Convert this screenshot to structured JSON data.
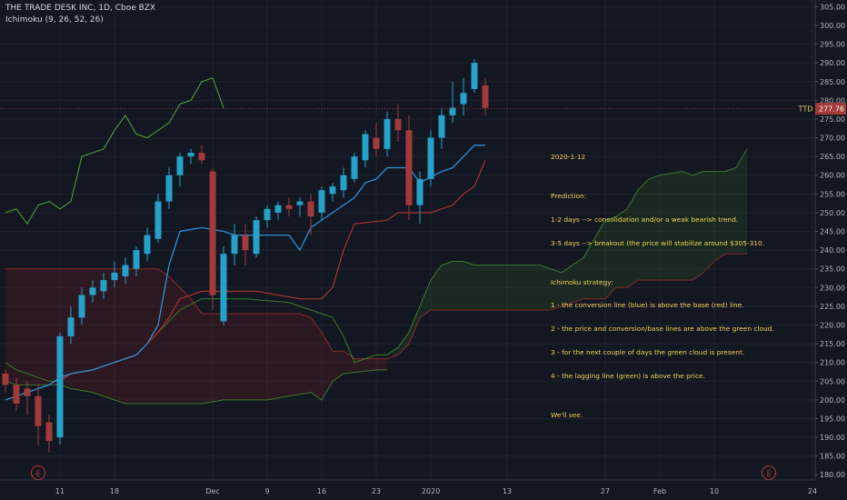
{
  "header": {
    "symbol_line": "THE TRADE DESK INC, 1D, Cboe BZX",
    "indicator_line": "Ichimoku (9, 26, 52, 26)"
  },
  "price_tag": {
    "symbol": "TTD",
    "value": "277.76"
  },
  "annotation": {
    "lines": [
      "2020-1-12",
      "",
      "Prediction:",
      "1-2 days --> consolidation and/or a weak bearish trend.",
      "3-5 days --> breakout (the price will stabilize around $305-310.",
      "",
      "Ichimoku strategy:",
      "1 - the conversion line (blue) is above the base (red) line.",
      "2 - the price and conversion/base lines are above the green cloud.",
      "3 - for the next couple of days the green cloud is present.",
      "4 - the lagging line (green) is above the price.",
      "",
      "We'll see."
    ]
  },
  "colors": {
    "background": "#131722",
    "up": "#26a1c9",
    "down": "#a33a3a",
    "conversion": "#2f8fd6",
    "base": "#a8332f",
    "lagging": "#4f9a2e",
    "span_a": "#3a7a2a",
    "span_b": "#8a2a2a",
    "cloud_bull": "rgba(60,120,40,0.18)",
    "cloud_bear": "rgba(130,30,30,0.22)",
    "axis_text": "#b2b5be",
    "annotation": "#f7d154",
    "earnings_marker": "#c0392b"
  },
  "chart_data": {
    "type": "candlestick",
    "title": "THE TRADE DESK INC, 1D, Cboe BZX",
    "indicator": "Ichimoku (9, 26, 52, 26)",
    "ylim": [
      178.6,
      306.8
    ],
    "y_ticks": [
      180,
      185,
      190,
      195,
      200,
      205,
      210,
      215,
      220,
      225,
      230,
      235,
      240,
      245,
      250,
      255,
      260,
      265,
      270,
      275,
      280,
      285,
      290,
      295,
      300,
      305
    ],
    "x_range": [
      0,
      75
    ],
    "x_ticks": [
      {
        "i": 5,
        "label": "11"
      },
      {
        "i": 10,
        "label": "18"
      },
      {
        "i": 19,
        "label": "Dec"
      },
      {
        "i": 24,
        "label": "9"
      },
      {
        "i": 29,
        "label": "16"
      },
      {
        "i": 34,
        "label": "23"
      },
      {
        "i": 39,
        "label": "2020"
      },
      {
        "i": 46,
        "label": "13"
      },
      {
        "i": 55,
        "label": "27"
      },
      {
        "i": 60,
        "label": "Feb"
      },
      {
        "i": 65,
        "label": "10"
      },
      {
        "i": 74,
        "label": "24"
      }
    ],
    "candles": [
      [
        207,
        208,
        202,
        204
      ],
      [
        204,
        206,
        197,
        199
      ],
      [
        203,
        205,
        196,
        201
      ],
      [
        201,
        204,
        188,
        193
      ],
      [
        194,
        196,
        186,
        189
      ],
      [
        190,
        218,
        188,
        217
      ],
      [
        217,
        225,
        215,
        222
      ],
      [
        222,
        230,
        220,
        228
      ],
      [
        228,
        232,
        226,
        230
      ],
      [
        229,
        234,
        227,
        232
      ],
      [
        232,
        237,
        230,
        234
      ],
      [
        233,
        238,
        231,
        236
      ],
      [
        235,
        241,
        233,
        240
      ],
      [
        239,
        246,
        237,
        244
      ],
      [
        243,
        255,
        242,
        253
      ],
      [
        253,
        262,
        251,
        260
      ],
      [
        260,
        266,
        257,
        265
      ],
      [
        265,
        267,
        263,
        266
      ],
      [
        266,
        268,
        263,
        264
      ],
      [
        261,
        262,
        224,
        228
      ],
      [
        221,
        241,
        220,
        239
      ],
      [
        239,
        247,
        236,
        244
      ],
      [
        244,
        247,
        236,
        240
      ],
      [
        239,
        249,
        238,
        248
      ],
      [
        248,
        252,
        246,
        251
      ],
      [
        250,
        253,
        248,
        252
      ],
      [
        252,
        254,
        249,
        251
      ],
      [
        252,
        254,
        249,
        253
      ],
      [
        253,
        255,
        244,
        249
      ],
      [
        250,
        257,
        248,
        256
      ],
      [
        255,
        258,
        253,
        257
      ],
      [
        256,
        262,
        254,
        260
      ],
      [
        259,
        266,
        258,
        265
      ],
      [
        264,
        272,
        262,
        271
      ],
      [
        270,
        274,
        265,
        267
      ],
      [
        267,
        277,
        265,
        275
      ],
      [
        275,
        279,
        269,
        272
      ],
      [
        272,
        276,
        248,
        252
      ],
      [
        252,
        261,
        247,
        259
      ],
      [
        259,
        272,
        257,
        270
      ],
      [
        270,
        278,
        267,
        276
      ],
      [
        276,
        285,
        274,
        278
      ],
      [
        279,
        286,
        276,
        282
      ],
      [
        283,
        291,
        282,
        290
      ],
      [
        284,
        286,
        276,
        278
      ]
    ],
    "conversion_line": [
      [
        0,
        200
      ],
      [
        4,
        204
      ],
      [
        5,
        206
      ],
      [
        6,
        207
      ],
      [
        8,
        208
      ],
      [
        12,
        212
      ],
      [
        13,
        215
      ],
      [
        14,
        220
      ],
      [
        15,
        236
      ],
      [
        16,
        245
      ],
      [
        18,
        246
      ],
      [
        20,
        245
      ],
      [
        21,
        244
      ],
      [
        24,
        244
      ],
      [
        26,
        244
      ],
      [
        27,
        240
      ],
      [
        28,
        246
      ],
      [
        30,
        250
      ],
      [
        32,
        254
      ],
      [
        33,
        258
      ],
      [
        34,
        259
      ],
      [
        35,
        262
      ],
      [
        37,
        262
      ],
      [
        38,
        258
      ],
      [
        40,
        261
      ],
      [
        41,
        262
      ],
      [
        42,
        265
      ],
      [
        43,
        268
      ],
      [
        44,
        268
      ]
    ],
    "base_line": [
      [
        5,
        205
      ],
      [
        6,
        207
      ],
      [
        8,
        208
      ],
      [
        12,
        212
      ],
      [
        13,
        215
      ],
      [
        14,
        218
      ],
      [
        15,
        222
      ],
      [
        16,
        227
      ],
      [
        18,
        229
      ],
      [
        23,
        229
      ],
      [
        27,
        227
      ],
      [
        29,
        227
      ],
      [
        30,
        230
      ],
      [
        31,
        240
      ],
      [
        32,
        247
      ],
      [
        35,
        248
      ],
      [
        36,
        250
      ],
      [
        38,
        250
      ],
      [
        39,
        250
      ],
      [
        40,
        251
      ],
      [
        41,
        252
      ],
      [
        42,
        255
      ],
      [
        43,
        257
      ],
      [
        44,
        264
      ]
    ],
    "lagging_line": [
      [
        0,
        250
      ],
      [
        1,
        251
      ],
      [
        2,
        247
      ],
      [
        3,
        252
      ],
      [
        4,
        253
      ],
      [
        5,
        251
      ],
      [
        6,
        253
      ],
      [
        7,
        265
      ],
      [
        8,
        266
      ],
      [
        9,
        267
      ],
      [
        10,
        272
      ],
      [
        11,
        276
      ],
      [
        12,
        271
      ],
      [
        13,
        270
      ],
      [
        14,
        272
      ],
      [
        15,
        274
      ],
      [
        16,
        279
      ],
      [
        17,
        280
      ],
      [
        18,
        285
      ],
      [
        19,
        286
      ],
      [
        20,
        278
      ]
    ],
    "senkou_span_a": [
      [
        0,
        210
      ],
      [
        1,
        208
      ],
      [
        2,
        207
      ],
      [
        3,
        206
      ],
      [
        4,
        205
      ],
      [
        5,
        205
      ],
      [
        6,
        207
      ],
      [
        8,
        208
      ],
      [
        12,
        212
      ],
      [
        14,
        218
      ],
      [
        16,
        224
      ],
      [
        18,
        227
      ],
      [
        22,
        227
      ],
      [
        26,
        226
      ],
      [
        29,
        223
      ],
      [
        30,
        222
      ],
      [
        31,
        217
      ],
      [
        32,
        210
      ],
      [
        33,
        211
      ],
      [
        34,
        212
      ],
      [
        35,
        212
      ],
      [
        36,
        214
      ],
      [
        37,
        218
      ],
      [
        38,
        225
      ],
      [
        39,
        232
      ],
      [
        40,
        236
      ],
      [
        41,
        237
      ],
      [
        42,
        237
      ],
      [
        43,
        236
      ],
      [
        47,
        236
      ],
      [
        49,
        236
      ],
      [
        51,
        234
      ],
      [
        52,
        236
      ],
      [
        53,
        238
      ],
      [
        54,
        243
      ],
      [
        55,
        248
      ],
      [
        56,
        249
      ],
      [
        57,
        251
      ],
      [
        58,
        256
      ],
      [
        59,
        259
      ],
      [
        60,
        260
      ],
      [
        62,
        261
      ],
      [
        63,
        260
      ],
      [
        64,
        261
      ],
      [
        66,
        261
      ],
      [
        67,
        262
      ],
      [
        68,
        267
      ]
    ],
    "senkou_span_b": [
      [
        0,
        235
      ],
      [
        14,
        235
      ],
      [
        15,
        233
      ],
      [
        17,
        227
      ],
      [
        18,
        223
      ],
      [
        27,
        223
      ],
      [
        28,
        222
      ],
      [
        29,
        218
      ],
      [
        30,
        213
      ],
      [
        31,
        213
      ],
      [
        32,
        211
      ],
      [
        34,
        211
      ],
      [
        35,
        211
      ],
      [
        36,
        212
      ],
      [
        37,
        215
      ],
      [
        38,
        222
      ],
      [
        39,
        224
      ],
      [
        41,
        224
      ],
      [
        42,
        224
      ],
      [
        48,
        224
      ],
      [
        50,
        224
      ],
      [
        52,
        226
      ],
      [
        53,
        227
      ],
      [
        55,
        227
      ],
      [
        56,
        230
      ],
      [
        57,
        230
      ],
      [
        58,
        232
      ],
      [
        61,
        232
      ],
      [
        63,
        232
      ],
      [
        64,
        234
      ],
      [
        65,
        237
      ],
      [
        66,
        239
      ],
      [
        68,
        239
      ]
    ],
    "lower_cloud_edge": [
      [
        0,
        205
      ],
      [
        1,
        204
      ],
      [
        2,
        204
      ],
      [
        3,
        204
      ],
      [
        5,
        204
      ],
      [
        6,
        203
      ],
      [
        8,
        202
      ],
      [
        10,
        200
      ],
      [
        11,
        199
      ],
      [
        13,
        199
      ],
      [
        14,
        199
      ],
      [
        16,
        199
      ],
      [
        18,
        199
      ],
      [
        20,
        200
      ],
      [
        24,
        200
      ],
      [
        26,
        201
      ],
      [
        28,
        202
      ],
      [
        29,
        200
      ],
      [
        30,
        205
      ],
      [
        31,
        207
      ],
      [
        34,
        208
      ],
      [
        35,
        208
      ]
    ],
    "earnings_markers": [
      3,
      70
    ]
  }
}
